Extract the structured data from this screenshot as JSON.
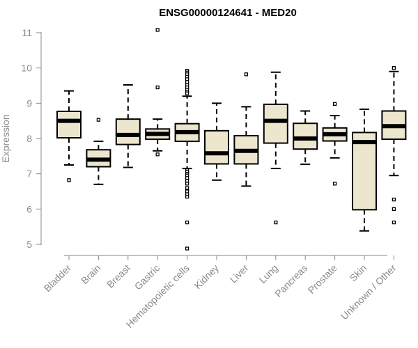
{
  "chart_data": {
    "type": "boxplot",
    "title": "ENSG00000124641 - MED20",
    "xlabel": "",
    "ylabel": "Expression",
    "ylim": [
      4.85,
      11.1
    ],
    "yticks": [
      5,
      6,
      7,
      8,
      9,
      10,
      11
    ],
    "box_color": "#ede6cf",
    "categories": [
      "Bladder",
      "Brain",
      "Breast",
      "Gastric",
      "Hematopoietic cells",
      "Kidney",
      "Liver",
      "Lung",
      "Pancreas",
      "Prostate",
      "Skin",
      "Unknown / Other"
    ],
    "boxes": [
      {
        "name": "Bladder",
        "whisker_low": 7.25,
        "q1": 8.02,
        "median": 8.5,
        "q3": 8.77,
        "whisker_high": 9.35,
        "outliers": [
          6.82
        ]
      },
      {
        "name": "Brain",
        "whisker_low": 6.7,
        "q1": 7.2,
        "median": 7.4,
        "q3": 7.68,
        "whisker_high": 7.92,
        "outliers": [
          8.53
        ]
      },
      {
        "name": "Breast",
        "whisker_low": 7.18,
        "q1": 7.83,
        "median": 8.1,
        "q3": 8.55,
        "whisker_high": 9.52,
        "outliers": []
      },
      {
        "name": "Gastric",
        "whisker_low": 7.65,
        "q1": 7.98,
        "median": 8.13,
        "q3": 8.27,
        "whisker_high": 8.55,
        "outliers": [
          11.08,
          9.45,
          7.55
        ]
      },
      {
        "name": "Hematopoietic cells",
        "whisker_low": 7.15,
        "q1": 7.92,
        "median": 8.18,
        "q3": 8.42,
        "whisker_high": 9.2,
        "outliers": [
          9.92,
          9.87,
          9.82,
          9.75,
          9.68,
          9.6,
          9.52,
          9.45,
          9.38,
          9.32,
          9.28,
          7.1,
          7.05,
          7.0,
          6.95,
          6.88,
          6.8,
          6.72,
          6.6,
          6.5,
          6.42,
          6.35,
          5.62,
          4.88
        ]
      },
      {
        "name": "Kidney",
        "whisker_low": 6.82,
        "q1": 7.28,
        "median": 7.58,
        "q3": 8.22,
        "whisker_high": 9.0,
        "outliers": []
      },
      {
        "name": "Liver",
        "whisker_low": 6.65,
        "q1": 7.28,
        "median": 7.65,
        "q3": 8.08,
        "whisker_high": 8.9,
        "outliers": [
          9.82
        ]
      },
      {
        "name": "Lung",
        "whisker_low": 7.15,
        "q1": 7.87,
        "median": 8.5,
        "q3": 8.97,
        "whisker_high": 9.88,
        "outliers": [
          5.62
        ]
      },
      {
        "name": "Pancreas",
        "whisker_low": 7.27,
        "q1": 7.7,
        "median": 8.0,
        "q3": 8.43,
        "whisker_high": 8.78,
        "outliers": []
      },
      {
        "name": "Prostate",
        "whisker_low": 7.45,
        "q1": 7.93,
        "median": 8.12,
        "q3": 8.3,
        "whisker_high": 8.65,
        "outliers": [
          8.98,
          6.72
        ]
      },
      {
        "name": "Skin",
        "whisker_low": 5.38,
        "q1": 5.98,
        "median": 7.9,
        "q3": 8.17,
        "whisker_high": 8.83,
        "outliers": []
      },
      {
        "name": "Unknown / Other",
        "whisker_low": 6.95,
        "q1": 7.98,
        "median": 8.35,
        "q3": 8.78,
        "whisker_high": 9.9,
        "outliers": [
          10.0,
          6.27,
          6.0,
          5.62
        ]
      }
    ]
  }
}
